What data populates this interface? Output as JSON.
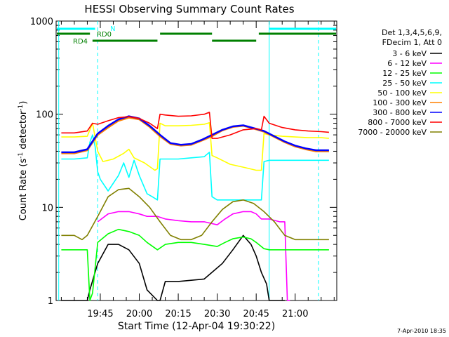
{
  "chart_data": {
    "type": "line",
    "title": "HESSI Observing Summary Count Rates",
    "xlabel": "Start Time (12-Apr-04 19:30:22)",
    "ylabel_main": "Count Rate (s",
    "ylabel_sup1": "-1",
    "ylabel_mid": " detector",
    "ylabel_sup2": "-1",
    "ylabel_end": ")",
    "y_scale": "log",
    "ylim": [
      1,
      1000
    ],
    "xlim_min": [
      -2,
      106
    ],
    "x_ticks": [
      {
        "min": 15,
        "label": "19:45"
      },
      {
        "min": 30,
        "label": "20:00"
      },
      {
        "min": 45,
        "label": "20:15"
      },
      {
        "min": 60,
        "label": "20:30"
      },
      {
        "min": 75,
        "label": "20:45"
      },
      {
        "min": 90,
        "label": "21:00"
      }
    ],
    "y_ticks": [
      {
        "value": 1,
        "label": "1"
      },
      {
        "value": 10,
        "label": "10"
      },
      {
        "value": 100,
        "label": "100"
      },
      {
        "value": 1000,
        "label": "1000"
      }
    ],
    "legend_header": [
      "Det 1,3,4,5,6,9,",
      "FDecim 1, Att 0"
    ],
    "legend_placement": "right-outside",
    "series": [
      {
        "name": "3 - 6 keV",
        "color": "#000000",
        "x": [
          0,
          7,
          10,
          11,
          14,
          18,
          22,
          26,
          30,
          33,
          37,
          38,
          40,
          45,
          55,
          62,
          66,
          70,
          73,
          75,
          77,
          79,
          80,
          82,
          84,
          86
        ],
        "y": [
          1,
          1,
          1,
          1.3,
          2.5,
          4,
          4,
          3.5,
          2.5,
          1.3,
          1,
          1,
          1.6,
          1.6,
          1.7,
          2.5,
          3.5,
          5,
          4,
          3,
          2,
          1.5,
          1,
          1,
          1,
          1
        ]
      },
      {
        "name": "6 - 12 keV",
        "color": "#ff00ff",
        "x": [
          14,
          18,
          22,
          26,
          30,
          33,
          37,
          40,
          45,
          50,
          55,
          60,
          63,
          66,
          70,
          73,
          75,
          77,
          80,
          84,
          86,
          87,
          88
        ],
        "y": [
          7,
          8.5,
          9,
          9,
          8.5,
          8,
          8,
          7.5,
          7.2,
          7,
          7,
          6.5,
          7.5,
          8.5,
          9,
          9,
          8.5,
          7.5,
          7.5,
          7,
          7,
          1,
          1
        ]
      },
      {
        "name": "12 - 25 keV",
        "color": "#00ff00",
        "x": [
          0,
          5,
          10,
          11,
          12,
          14,
          18,
          22,
          26,
          30,
          33,
          37,
          40,
          45,
          50,
          55,
          60,
          63,
          66,
          70,
          73,
          75,
          78,
          80,
          84,
          86,
          88,
          96,
          103
        ],
        "y": [
          3.5,
          3.5,
          3.5,
          1,
          1.2,
          4.2,
          5.2,
          5.8,
          5.5,
          5,
          4.2,
          3.5,
          4,
          4.2,
          4.2,
          4,
          3.8,
          4.2,
          4.6,
          4.8,
          4.6,
          4.2,
          3.6,
          3.5,
          3.5,
          3.5,
          3.5,
          3.5,
          3.5
        ]
      },
      {
        "name": "25 - 50 keV",
        "color": "#00ffff",
        "x": [
          0,
          5,
          10,
          11,
          12,
          13,
          14,
          15,
          18,
          22,
          24,
          26,
          28,
          30,
          33,
          35,
          37,
          38,
          40,
          45,
          50,
          55,
          57,
          58,
          60,
          65,
          70,
          75,
          77,
          78,
          80,
          85,
          90,
          95,
          100,
          103
        ],
        "y": [
          33,
          33,
          34,
          50,
          60,
          45,
          24,
          20,
          15,
          22,
          30,
          21,
          32,
          22,
          14,
          13,
          12,
          33,
          33,
          33,
          34,
          35,
          39,
          13,
          12,
          12,
          12,
          12,
          12,
          31,
          32,
          32,
          32,
          32,
          32,
          32
        ]
      },
      {
        "name": "50 - 100 keV",
        "color": "#ffff00",
        "x": [
          0,
          5,
          10,
          12,
          14,
          16,
          20,
          24,
          26,
          28,
          32,
          36,
          37,
          38,
          40,
          45,
          50,
          55,
          57,
          58,
          60,
          65,
          70,
          75,
          77,
          78,
          80,
          85,
          90,
          95,
          100,
          103
        ],
        "y": [
          57,
          57,
          58,
          80,
          40,
          31,
          33,
          38,
          42,
          34,
          30,
          25,
          26,
          80,
          75,
          75,
          76,
          78,
          81,
          36,
          34,
          29,
          27,
          25,
          25,
          62,
          60,
          58,
          57,
          56,
          56,
          55
        ]
      },
      {
        "name": "100 - 300 keV",
        "color": "#ff8000",
        "x": [
          0,
          5,
          10,
          14,
          18,
          22,
          26,
          30,
          34,
          38,
          42,
          46,
          50,
          54,
          58,
          62,
          66,
          70,
          74,
          78,
          82,
          86,
          90,
          94,
          98,
          103
        ],
        "y": [
          38,
          38,
          41,
          60,
          72,
          85,
          92,
          88,
          73,
          58,
          48,
          46,
          47,
          52,
          58,
          67,
          73,
          75,
          70,
          65,
          57,
          50,
          45,
          42,
          40,
          40
        ]
      },
      {
        "name": "300 - 800 keV",
        "color": "#0000ff",
        "x": [
          0,
          5,
          10,
          14,
          18,
          22,
          26,
          30,
          34,
          38,
          42,
          46,
          50,
          54,
          58,
          62,
          66,
          70,
          74,
          78,
          82,
          86,
          90,
          94,
          98,
          103
        ],
        "y": [
          39,
          39,
          42,
          62,
          75,
          88,
          95,
          90,
          75,
          60,
          49,
          47,
          48,
          53,
          60,
          68,
          74,
          76,
          71,
          66,
          58,
          51,
          46,
          43,
          41,
          41
        ]
      },
      {
        "name": "800 - 7000 keV",
        "color": "#ff0000",
        "x": [
          0,
          5,
          10,
          12,
          14,
          18,
          22,
          26,
          30,
          34,
          37,
          38,
          40,
          45,
          50,
          55,
          57,
          58,
          60,
          65,
          70,
          75,
          77,
          78,
          80,
          85,
          90,
          95,
          100,
          103
        ],
        "y": [
          63,
          63,
          66,
          80,
          78,
          85,
          92,
          94,
          90,
          80,
          70,
          100,
          98,
          95,
          96,
          100,
          105,
          55,
          55,
          60,
          68,
          70,
          68,
          95,
          80,
          72,
          68,
          66,
          65,
          64
        ]
      },
      {
        "name": "7000 - 20000 keV",
        "color": "#808000",
        "x": [
          0,
          5,
          8,
          10,
          14,
          18,
          22,
          26,
          30,
          34,
          38,
          42,
          46,
          50,
          54,
          58,
          62,
          66,
          70,
          74,
          78,
          82,
          86,
          90,
          96,
          103
        ],
        "y": [
          5,
          5,
          4.5,
          5,
          8,
          13,
          15.5,
          16,
          13,
          10,
          7,
          5,
          4.5,
          4.5,
          5,
          7,
          9.5,
          11.5,
          12,
          11,
          9,
          7,
          5,
          4.5,
          4.5,
          4.5
        ]
      }
    ],
    "annotations": [
      {
        "text": "RD4",
        "color": "#008000"
      },
      {
        "text": "RD0",
        "color": "#008000"
      },
      {
        "text": "N",
        "color": "#00ffff"
      }
    ],
    "bars": {
      "rd0": [
        {
          "from": -2,
          "to": 11
        },
        {
          "from": 38,
          "to": 58
        },
        {
          "from": 76,
          "to": 106
        }
      ],
      "rd4": [
        {
          "from": 12,
          "to": 37
        },
        {
          "from": 58,
          "to": 75
        }
      ],
      "n": [
        {
          "from": -2,
          "to": 13
        },
        {
          "from": 80,
          "to": 106
        }
      ]
    },
    "cyan_solid_lines_min": [
      -1,
      80
    ],
    "cyan_dashed_lines_min": [
      14,
      99
    ],
    "grid": false
  },
  "footer": {
    "timestamp": "7-Apr-2010 18:35"
  }
}
